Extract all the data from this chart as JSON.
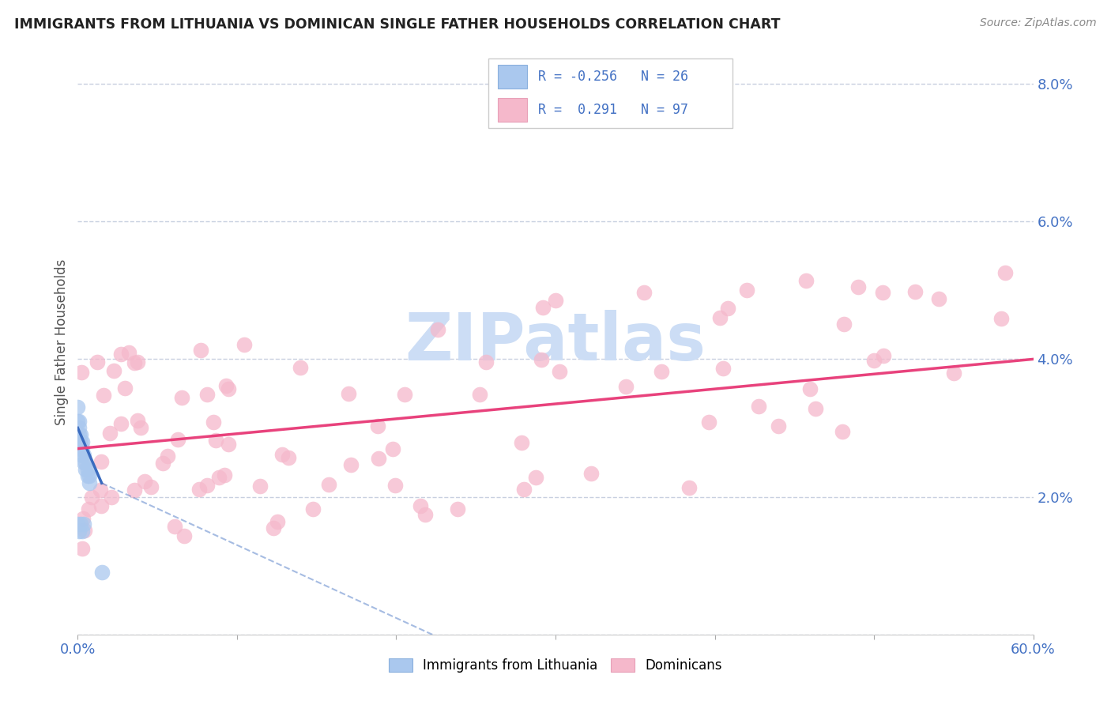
{
  "title": "IMMIGRANTS FROM LITHUANIA VS DOMINICAN SINGLE FATHER HOUSEHOLDS CORRELATION CHART",
  "source_text": "Source: ZipAtlas.com",
  "ylabel": "Single Father Households",
  "xlim": [
    0,
    0.6
  ],
  "ylim": [
    0,
    0.085
  ],
  "R_lithuania": -0.256,
  "N_lithuania": 26,
  "R_dominican": 0.291,
  "N_dominican": 97,
  "lithuania_color": "#aac8ee",
  "dominican_color": "#f5b8cb",
  "lithuania_line_color": "#3a6bbf",
  "dominican_line_color": "#e8427c",
  "tick_color": "#4472c4",
  "watermark_color": "#ccddf5",
  "background_color": "#ffffff",
  "grid_color": "#c8d0e0"
}
